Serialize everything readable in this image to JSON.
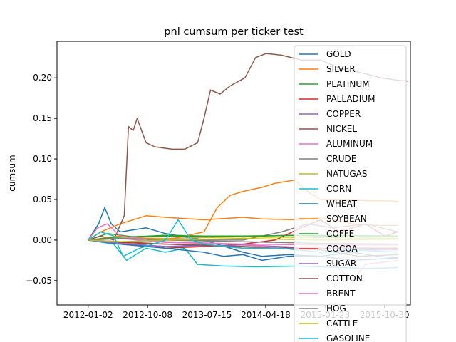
{
  "chart_data": {
    "type": "line",
    "title": "pnl cumsum per ticker test",
    "xlabel": "",
    "ylabel": "cumsum",
    "x_ticks": [
      "2012-01-02",
      "2012-10-08",
      "2013-07-15",
      "2014-04-18",
      "2015-01-23",
      "2015-10-30"
    ],
    "x_range": [
      "2011-08-08",
      "2016-02-29"
    ],
    "ylim": [
      -0.08,
      0.245
    ],
    "y_ticks": [
      -0.05,
      0.0,
      0.05,
      0.1,
      0.15,
      0.2
    ],
    "y_tick_labels": [
      "−0.05",
      "0.00",
      "0.05",
      "0.10",
      "0.15",
      "0.20"
    ],
    "grid": false,
    "legend_position": "right",
    "series": [
      {
        "name": "GOLD",
        "color": "#1f77b4",
        "points": [
          [
            "2012-01-02",
            0.0
          ],
          [
            "2012-02-20",
            0.02
          ],
          [
            "2012-03-20",
            0.04
          ],
          [
            "2012-04-20",
            0.02
          ],
          [
            "2012-06-01",
            0.01
          ],
          [
            "2012-10-01",
            0.015
          ],
          [
            "2013-01-01",
            0.008
          ],
          [
            "2013-07-01",
            0.0
          ],
          [
            "2014-01-01",
            -0.015
          ],
          [
            "2014-04-01",
            -0.02
          ],
          [
            "2014-08-01",
            -0.018
          ],
          [
            "2015-01-01",
            -0.02
          ],
          [
            "2015-06-01",
            -0.015
          ],
          [
            "2015-10-01",
            -0.02
          ],
          [
            "2016-01-01",
            -0.022
          ]
        ]
      },
      {
        "name": "SILVER",
        "color": "#ff7f0e",
        "points": [
          [
            "2012-01-02",
            0.0
          ],
          [
            "2012-03-01",
            0.01
          ],
          [
            "2012-06-01",
            0.02
          ],
          [
            "2012-10-01",
            0.03
          ],
          [
            "2013-01-01",
            0.028
          ],
          [
            "2013-07-01",
            0.025
          ],
          [
            "2014-01-01",
            0.028
          ],
          [
            "2014-04-01",
            0.026
          ],
          [
            "2014-10-01",
            0.025
          ],
          [
            "2015-01-01",
            0.028
          ],
          [
            "2015-06-01",
            0.02
          ],
          [
            "2015-10-01",
            0.018
          ],
          [
            "2016-01-01",
            0.018
          ]
        ]
      },
      {
        "name": "PLATINUM",
        "color": "#2ca02c",
        "points": [
          [
            "2012-01-02",
            0.0
          ],
          [
            "2012-04-01",
            0.008
          ],
          [
            "2012-08-01",
            0.004
          ],
          [
            "2013-01-01",
            0.006
          ],
          [
            "2013-07-01",
            0.005
          ],
          [
            "2014-01-01",
            0.004
          ],
          [
            "2014-08-01",
            0.006
          ],
          [
            "2015-01-01",
            0.005
          ],
          [
            "2015-06-01",
            0.004
          ],
          [
            "2016-01-01",
            0.004
          ]
        ]
      },
      {
        "name": "PALLADIUM",
        "color": "#d62728",
        "points": [
          [
            "2012-01-02",
            0.0
          ],
          [
            "2012-06-01",
            -0.005
          ],
          [
            "2013-01-01",
            -0.01
          ],
          [
            "2013-07-01",
            -0.008
          ],
          [
            "2014-01-01",
            -0.005
          ],
          [
            "2014-06-01",
            0.0
          ],
          [
            "2014-10-01",
            0.015
          ],
          [
            "2015-01-01",
            0.025
          ],
          [
            "2015-04-01",
            0.01
          ],
          [
            "2015-08-01",
            0.02
          ],
          [
            "2015-11-01",
            0.005
          ],
          [
            "2016-01-01",
            0.01
          ]
        ]
      },
      {
        "name": "COPPER",
        "color": "#9467bd",
        "points": [
          [
            "2012-01-02",
            0.0
          ],
          [
            "2012-06-01",
            -0.005
          ],
          [
            "2013-01-01",
            -0.008
          ],
          [
            "2013-07-01",
            -0.006
          ],
          [
            "2014-01-01",
            -0.01
          ],
          [
            "2014-06-01",
            -0.008
          ],
          [
            "2015-01-01",
            -0.01
          ],
          [
            "2015-06-01",
            -0.012
          ],
          [
            "2016-01-01",
            -0.012
          ]
        ]
      },
      {
        "name": "NICKEL",
        "color": "#8c564b",
        "points": [
          [
            "2012-01-02",
            0.0
          ],
          [
            "2012-03-01",
            0.005
          ],
          [
            "2012-05-01",
            0.0
          ],
          [
            "2012-06-20",
            0.03
          ],
          [
            "2012-07-10",
            0.14
          ],
          [
            "2012-08-01",
            0.135
          ],
          [
            "2012-08-20",
            0.15
          ],
          [
            "2012-10-01",
            0.12
          ],
          [
            "2012-11-10",
            0.115
          ],
          [
            "2013-02-01",
            0.112
          ],
          [
            "2013-04-01",
            0.112
          ],
          [
            "2013-06-01",
            0.12
          ],
          [
            "2013-07-01",
            0.15
          ],
          [
            "2013-08-01",
            0.185
          ],
          [
            "2013-09-15",
            0.18
          ],
          [
            "2013-11-01",
            0.19
          ],
          [
            "2014-01-10",
            0.2
          ],
          [
            "2014-03-01",
            0.225
          ],
          [
            "2014-04-20",
            0.23
          ],
          [
            "2014-07-01",
            0.228
          ],
          [
            "2014-10-01",
            0.222
          ],
          [
            "2015-01-01",
            0.222
          ],
          [
            "2015-04-01",
            0.212
          ],
          [
            "2015-08-01",
            0.205
          ],
          [
            "2015-10-15",
            0.2
          ],
          [
            "2016-01-01",
            0.197
          ],
          [
            "2016-02-15",
            0.196
          ]
        ]
      },
      {
        "name": "ALUMINUM",
        "color": "#e377c2",
        "points": [
          [
            "2012-01-02",
            0.0
          ],
          [
            "2012-06-01",
            0.002
          ],
          [
            "2013-01-01",
            -0.003
          ],
          [
            "2014-01-01",
            -0.005
          ],
          [
            "2015-01-01",
            -0.006
          ],
          [
            "2016-01-01",
            -0.006
          ]
        ]
      },
      {
        "name": "CRUDE",
        "color": "#7f7f7f",
        "points": [
          [
            "2012-01-02",
            0.0
          ],
          [
            "2012-06-01",
            0.003
          ],
          [
            "2013-01-01",
            0.0
          ],
          [
            "2013-07-01",
            0.0
          ],
          [
            "2014-01-01",
            0.0
          ],
          [
            "2014-07-01",
            0.01
          ],
          [
            "2014-11-01",
            0.02
          ],
          [
            "2015-03-01",
            0.015
          ],
          [
            "2015-08-01",
            0.02
          ],
          [
            "2016-01-01",
            0.01
          ]
        ]
      },
      {
        "name": "NATUGAS",
        "color": "#bcbd22",
        "points": [
          [
            "2012-01-02",
            0.0
          ],
          [
            "2012-06-01",
            0.003
          ],
          [
            "2013-01-01",
            0.002
          ],
          [
            "2014-01-01",
            0.004
          ],
          [
            "2015-01-01",
            0.003
          ],
          [
            "2016-01-01",
            0.002
          ]
        ]
      },
      {
        "name": "CORN",
        "color": "#17becf",
        "points": [
          [
            "2012-01-02",
            0.0
          ],
          [
            "2012-05-01",
            -0.005
          ],
          [
            "2012-07-01",
            -0.025
          ],
          [
            "2012-10-01",
            -0.01
          ],
          [
            "2013-01-01",
            -0.015
          ],
          [
            "2013-04-01",
            -0.01
          ],
          [
            "2013-06-01",
            -0.03
          ],
          [
            "2013-10-01",
            -0.032
          ],
          [
            "2014-03-01",
            -0.033
          ],
          [
            "2014-10-01",
            -0.032
          ],
          [
            "2015-01-01",
            -0.033
          ],
          [
            "2015-08-01",
            -0.035
          ],
          [
            "2016-01-01",
            -0.034
          ]
        ]
      },
      {
        "name": "WHEAT",
        "color": "#1f77b4",
        "points": [
          [
            "2012-01-02",
            0.0
          ],
          [
            "2012-06-01",
            -0.005
          ],
          [
            "2013-01-01",
            -0.01
          ],
          [
            "2013-07-01",
            -0.015
          ],
          [
            "2013-10-01",
            -0.02
          ],
          [
            "2014-01-01",
            -0.018
          ],
          [
            "2014-04-01",
            -0.025
          ],
          [
            "2014-08-01",
            -0.02
          ],
          [
            "2015-01-01",
            -0.02
          ],
          [
            "2015-06-01",
            -0.025
          ],
          [
            "2016-01-01",
            -0.022
          ]
        ]
      },
      {
        "name": "SOYBEAN",
        "color": "#ff7f0e",
        "points": [
          [
            "2012-01-02",
            0.0
          ],
          [
            "2012-06-01",
            0.005
          ],
          [
            "2013-01-01",
            0.0
          ],
          [
            "2013-07-01",
            0.01
          ],
          [
            "2013-09-01",
            0.04
          ],
          [
            "2013-11-01",
            0.055
          ],
          [
            "2014-01-01",
            0.06
          ],
          [
            "2014-04-01",
            0.065
          ],
          [
            "2014-06-01",
            0.07
          ],
          [
            "2014-09-01",
            0.074
          ],
          [
            "2014-11-01",
            0.06
          ],
          [
            "2015-01-01",
            0.05
          ],
          [
            "2015-06-01",
            0.049
          ],
          [
            "2016-01-01",
            0.048
          ]
        ]
      },
      {
        "name": "COFFE",
        "color": "#2ca02c",
        "points": [
          [
            "2012-01-02",
            0.0
          ],
          [
            "2012-06-01",
            0.004
          ],
          [
            "2013-01-01",
            0.005
          ],
          [
            "2014-01-01",
            0.005
          ],
          [
            "2015-01-01",
            0.006
          ],
          [
            "2016-01-01",
            0.005
          ]
        ]
      },
      {
        "name": "COCOA",
        "color": "#d62728",
        "points": [
          [
            "2012-01-02",
            0.0
          ],
          [
            "2012-06-01",
            -0.003
          ],
          [
            "2013-01-01",
            -0.005
          ],
          [
            "2014-01-01",
            -0.008
          ],
          [
            "2015-01-01",
            -0.01
          ],
          [
            "2016-01-01",
            -0.01
          ]
        ]
      },
      {
        "name": "SUGAR",
        "color": "#9467bd",
        "points": [
          [
            "2012-01-02",
            0.0
          ],
          [
            "2012-06-01",
            -0.004
          ],
          [
            "2013-01-01",
            -0.008
          ],
          [
            "2014-01-01",
            -0.006
          ],
          [
            "2015-01-01",
            -0.01
          ],
          [
            "2016-01-01",
            -0.012
          ]
        ]
      },
      {
        "name": "COTTON",
        "color": "#8c564b",
        "points": [
          [
            "2012-01-02",
            0.0
          ],
          [
            "2012-06-01",
            -0.002
          ],
          [
            "2013-01-01",
            -0.005
          ],
          [
            "2014-01-01",
            -0.008
          ],
          [
            "2015-01-01",
            -0.012
          ],
          [
            "2015-07-01",
            -0.02
          ],
          [
            "2016-01-01",
            -0.018
          ]
        ]
      },
      {
        "name": "BRENT",
        "color": "#e377c2",
        "points": [
          [
            "2012-01-02",
            0.0
          ],
          [
            "2012-02-15",
            0.015
          ],
          [
            "2012-04-01",
            0.02
          ],
          [
            "2012-06-01",
            0.005
          ],
          [
            "2013-01-01",
            -0.002
          ],
          [
            "2014-01-01",
            -0.005
          ],
          [
            "2015-01-01",
            -0.015
          ],
          [
            "2015-06-01",
            -0.05
          ],
          [
            "2015-08-01",
            -0.03
          ],
          [
            "2016-01-01",
            -0.025
          ]
        ]
      },
      {
        "name": "HOG",
        "color": "#7f7f7f",
        "points": [
          [
            "2012-01-02",
            0.0
          ],
          [
            "2012-06-01",
            0.002
          ],
          [
            "2013-01-01",
            0.0
          ],
          [
            "2014-01-01",
            -0.002
          ],
          [
            "2015-01-01",
            -0.004
          ],
          [
            "2016-01-01",
            -0.005
          ]
        ]
      },
      {
        "name": "CATTLE",
        "color": "#bcbd22",
        "points": [
          [
            "2012-01-02",
            0.0
          ],
          [
            "2012-06-01",
            -0.002
          ],
          [
            "2013-01-01",
            0.0
          ],
          [
            "2014-01-01",
            0.002
          ],
          [
            "2015-01-01",
            0.0
          ],
          [
            "2016-01-01",
            0.001
          ]
        ]
      },
      {
        "name": "GASOLINE",
        "color": "#17becf",
        "points": [
          [
            "2012-01-02",
            0.0
          ],
          [
            "2012-03-01",
            0.01
          ],
          [
            "2012-05-01",
            0.005
          ],
          [
            "2012-06-15",
            -0.02
          ],
          [
            "2012-09-01",
            -0.01
          ],
          [
            "2013-01-01",
            0.0
          ],
          [
            "2013-03-01",
            0.025
          ],
          [
            "2013-05-01",
            0.0
          ],
          [
            "2013-07-01",
            -0.005
          ],
          [
            "2014-01-01",
            -0.01
          ],
          [
            "2014-07-01",
            -0.01
          ],
          [
            "2015-01-01",
            -0.015
          ],
          [
            "2015-06-01",
            -0.012
          ],
          [
            "2016-01-01",
            -0.015
          ]
        ]
      }
    ]
  }
}
